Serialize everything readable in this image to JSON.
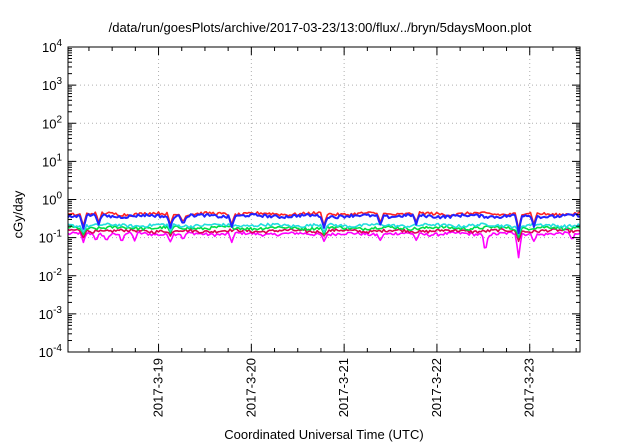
{
  "chart_data": {
    "type": "line",
    "title": "/data/run/goesPlots/archive/2017-03-23/13:00/flux/../bryn/5daysMoon.plot",
    "xlabel": "Coordinated Universal Time (UTC)",
    "ylabel": "cGy/day",
    "yscale": "log",
    "ylim": [
      0.0001,
      10000
    ],
    "y_ticks": [
      {
        "base": "10",
        "exp": "-4"
      },
      {
        "base": "10",
        "exp": "-3"
      },
      {
        "base": "10",
        "exp": "-2"
      },
      {
        "base": "10",
        "exp": "-1"
      },
      {
        "base": "10",
        "exp": "0"
      },
      {
        "base": "10",
        "exp": "1"
      },
      {
        "base": "10",
        "exp": "2"
      },
      {
        "base": "10",
        "exp": "3"
      },
      {
        "base": "10",
        "exp": "4"
      }
    ],
    "x_start": "2017-03-18 00:35",
    "x_end": "2017-03-23 13:00",
    "x_ticks": [
      "2017-3-19",
      "2017-3-20",
      "2017-3-21",
      "2017-3-22",
      "2017-3-23"
    ],
    "grid": true,
    "legend": "none",
    "series": [
      {
        "color": "#ff00ff",
        "base": 0.125,
        "dips": [
          [
            0.03,
            0.075
          ],
          [
            0.055,
            0.08
          ],
          [
            0.075,
            0.08
          ],
          [
            0.105,
            0.075
          ],
          [
            0.13,
            0.082
          ],
          [
            0.2,
            0.078
          ],
          [
            0.225,
            0.085
          ],
          [
            0.32,
            0.075
          ],
          [
            0.5,
            0.08
          ],
          [
            0.61,
            0.085
          ],
          [
            0.68,
            0.085
          ],
          [
            0.815,
            0.04
          ],
          [
            0.88,
            0.03
          ],
          [
            0.91,
            0.08
          ],
          [
            0.985,
            0.085
          ]
        ]
      },
      {
        "color": "#dd0055",
        "base": 0.15,
        "dips": [
          [
            0.03,
            0.1
          ],
          [
            0.2,
            0.11
          ],
          [
            0.5,
            0.11
          ],
          [
            0.88,
            0.08
          ]
        ]
      },
      {
        "color": "#00dd44",
        "base": 0.18,
        "dips": [
          [
            0.03,
            0.12
          ],
          [
            0.2,
            0.13
          ],
          [
            0.5,
            0.12
          ],
          [
            0.88,
            0.1
          ]
        ]
      },
      {
        "color": "#22dddd",
        "base": 0.21,
        "dips": [
          [
            0.03,
            0.14
          ],
          [
            0.2,
            0.15
          ],
          [
            0.5,
            0.14
          ],
          [
            0.88,
            0.12
          ]
        ]
      },
      {
        "color": "#ff2222",
        "base": 0.42,
        "dips": [
          [
            0.03,
            0.2
          ],
          [
            0.06,
            0.25
          ],
          [
            0.2,
            0.21
          ],
          [
            0.225,
            0.25
          ],
          [
            0.32,
            0.22
          ],
          [
            0.5,
            0.21
          ],
          [
            0.61,
            0.25
          ],
          [
            0.68,
            0.26
          ],
          [
            0.88,
            0.16
          ],
          [
            0.91,
            0.22
          ]
        ]
      },
      {
        "color": "#2222ff",
        "base": 0.37,
        "dips": [
          [
            0.03,
            0.17
          ],
          [
            0.06,
            0.22
          ],
          [
            0.2,
            0.18
          ],
          [
            0.225,
            0.22
          ],
          [
            0.32,
            0.19
          ],
          [
            0.5,
            0.18
          ],
          [
            0.61,
            0.22
          ],
          [
            0.68,
            0.22
          ],
          [
            0.88,
            0.13
          ],
          [
            0.91,
            0.19
          ]
        ]
      }
    ]
  }
}
